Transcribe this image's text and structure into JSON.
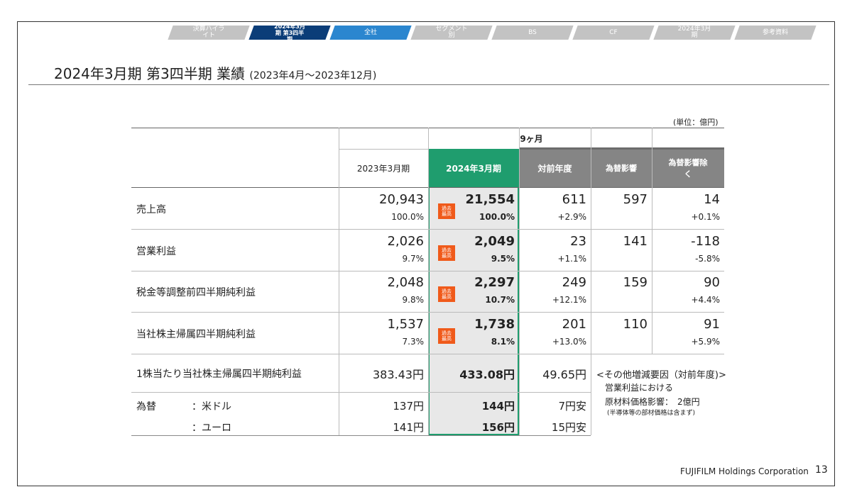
{
  "nav": [
    "決算ハイライト",
    "2024年3月期 第3四半期",
    "全社",
    "セグメント別",
    "BS",
    "CF",
    "2024年3月期",
    "参考資料"
  ],
  "header": {
    "title": "2024年3月期 第3四半期 業績",
    "period": "(2023年4月～2023年12月)"
  },
  "unit": "(単位：億円)",
  "table": {
    "span_header": "9ヶ月",
    "columns": [
      "2023年3月期",
      "2024年3月期",
      "対前年度",
      "為替影響",
      "為替影響除く"
    ],
    "rows": [
      {
        "label": "売上高",
        "prev": "20,943",
        "prev_pct": "100.0%",
        "cur": "21,554",
        "cur_pct": "100.0%",
        "badge": "過去最高",
        "diff": "611",
        "diff_pct": "+2.9%",
        "fx": "597",
        "excl": "14",
        "excl_pct": "+0.1%"
      },
      {
        "label": "営業利益",
        "prev": "2,026",
        "prev_pct": "9.7%",
        "cur": "2,049",
        "cur_pct": "9.5%",
        "badge": "過去最高",
        "diff": "23",
        "diff_pct": "+1.1%",
        "fx": "141",
        "excl": "-118",
        "excl_pct": "-5.8%"
      },
      {
        "label": "税金等調整前四半期純利益",
        "prev": "2,048",
        "prev_pct": "9.8%",
        "cur": "2,297",
        "cur_pct": "10.7%",
        "badge": "過去最高",
        "diff": "249",
        "diff_pct": "+12.1%",
        "fx": "159",
        "excl": "90",
        "excl_pct": "+4.4%"
      },
      {
        "label": "当社株主帰属四半期純利益",
        "prev": "1,537",
        "prev_pct": "7.3%",
        "cur": "1,738",
        "cur_pct": "8.1%",
        "badge": "過去最高",
        "diff": "201",
        "diff_pct": "+13.0%",
        "fx": "110",
        "excl": "91",
        "excl_pct": "+5.9%"
      }
    ],
    "eps": {
      "label": "1株当たり当社株主帰属四半期純利益",
      "prev": "383.43円",
      "cur": "433.08円",
      "diff": "49.65円"
    },
    "fx_label": "為替",
    "fx_rows": [
      {
        "label": "：米ドル",
        "prev": "137円",
        "cur": "144円",
        "diff": "7円安"
      },
      {
        "label": "：ユーロ",
        "prev": "141円",
        "cur": "156円",
        "diff": "15円安"
      }
    ]
  },
  "note": [
    "<その他増減要因（対前年度)>",
    "営業利益における",
    "原材料価格影響：　2億円",
    "(半導体等の部材価格は含まず)"
  ],
  "footer": {
    "company": "FUJIFILM Holdings Corporation",
    "page": "13"
  }
}
